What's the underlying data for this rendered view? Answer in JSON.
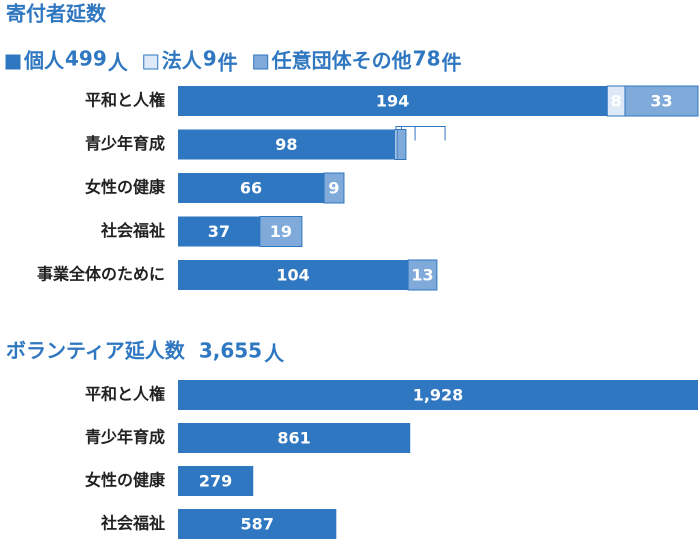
{
  "chart_data": [
    {
      "type": "bar",
      "orientation": "horizontal",
      "stacked": true,
      "title": "寄付者延数",
      "categories": [
        "平和と人権",
        "青少年育成",
        "女性の健康",
        "社会福祉",
        "事業全体のために"
      ],
      "series": [
        {
          "name": "個人",
          "total": 499,
          "unit": "人",
          "color": "#2f77c0",
          "values": [
            194,
            98,
            66,
            37,
            104
          ]
        },
        {
          "name": "法人",
          "total": 9,
          "unit": "件",
          "color": "#dde9f7",
          "values": [
            8,
            1,
            null,
            null,
            null
          ]
        },
        {
          "name": "任意団体その他",
          "total": 78,
          "unit": "件",
          "color": "#7faad9",
          "values": [
            33,
            4,
            9,
            19,
            13
          ]
        }
      ]
    },
    {
      "type": "bar",
      "orientation": "horizontal",
      "title": "ボランティア延人数",
      "total": {
        "value": 3655,
        "label": "3,655"
      },
      "unit": "人",
      "color": "#2f77c0",
      "categories": [
        "平和と人権",
        "青少年育成",
        "女性の健康",
        "社会福祉"
      ],
      "values": [
        1928,
        861,
        279,
        587
      ],
      "value_labels": [
        "1,928",
        "861",
        "279",
        "587"
      ]
    }
  ]
}
